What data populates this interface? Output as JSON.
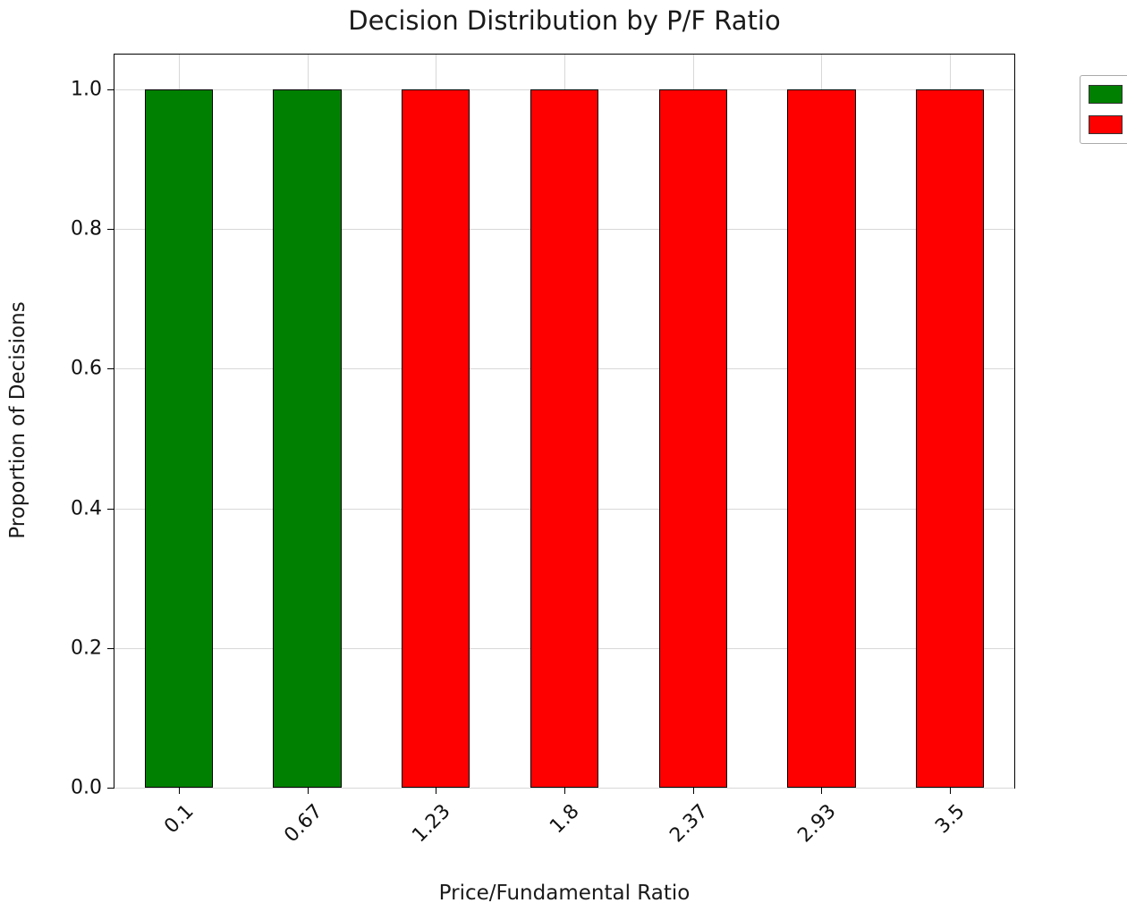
{
  "chart_data": {
    "type": "bar",
    "title": "Decision Distribution by P/F Ratio",
    "xlabel": "Price/Fundamental Ratio",
    "ylabel": "Proportion of Decisions",
    "categories": [
      "0.1",
      "0.67",
      "1.23",
      "1.8",
      "2.37",
      "2.93",
      "3.5"
    ],
    "values": [
      1.0,
      1.0,
      1.0,
      1.0,
      1.0,
      1.0,
      1.0
    ],
    "bar_colors": [
      "#008000",
      "#008000",
      "#fe0000",
      "#fe0000",
      "#fe0000",
      "#fe0000",
      "#fe0000"
    ],
    "yticks": [
      "0.0",
      "0.2",
      "0.4",
      "0.6",
      "0.8",
      "1.0"
    ],
    "ylim": [
      0,
      1.05
    ],
    "grid": true,
    "bar_width_fraction": 0.53,
    "legend": {
      "position": "outside-top-right",
      "labels_visible": false,
      "entries": [
        {
          "label": "",
          "color": "#008000"
        },
        {
          "label": "",
          "color": "#fe0000"
        }
      ]
    }
  }
}
